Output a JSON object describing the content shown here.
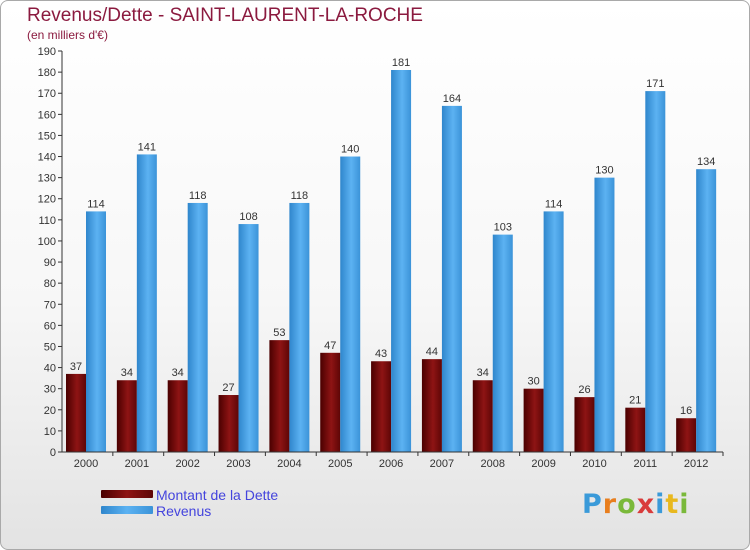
{
  "header": {
    "title": "Revenus/Dette - SAINT-LAURENT-LA-ROCHE",
    "subtitle": "(en milliers d'€)"
  },
  "legend": {
    "items": [
      {
        "label": "Montant de la Dette",
        "color": "#7a0a0a"
      },
      {
        "label": "Revenus",
        "color": "#4aa3e8"
      }
    ]
  },
  "logo": {
    "text": "Proxiti"
  },
  "chart_data": {
    "type": "bar",
    "title": "Revenus/Dette - SAINT-LAURENT-LA-ROCHE",
    "ylabel": "(en milliers d'€)",
    "xlabel": "",
    "categories": [
      "2000",
      "2001",
      "2002",
      "2003",
      "2004",
      "2005",
      "2006",
      "2007",
      "2008",
      "2009",
      "2010",
      "2011",
      "2012"
    ],
    "series": [
      {
        "name": "Montant de la Dette",
        "color": "#7a0a0a",
        "values": [
          37,
          34,
          34,
          27,
          53,
          47,
          43,
          44,
          34,
          30,
          26,
          21,
          16
        ]
      },
      {
        "name": "Revenus",
        "color": "#4aa3e8",
        "values": [
          114,
          141,
          118,
          108,
          118,
          140,
          181,
          164,
          103,
          114,
          130,
          171,
          134
        ]
      }
    ],
    "ylim": [
      0,
      190
    ],
    "ytick_step": 10,
    "grid": false,
    "legend_position": "bottom-left"
  }
}
